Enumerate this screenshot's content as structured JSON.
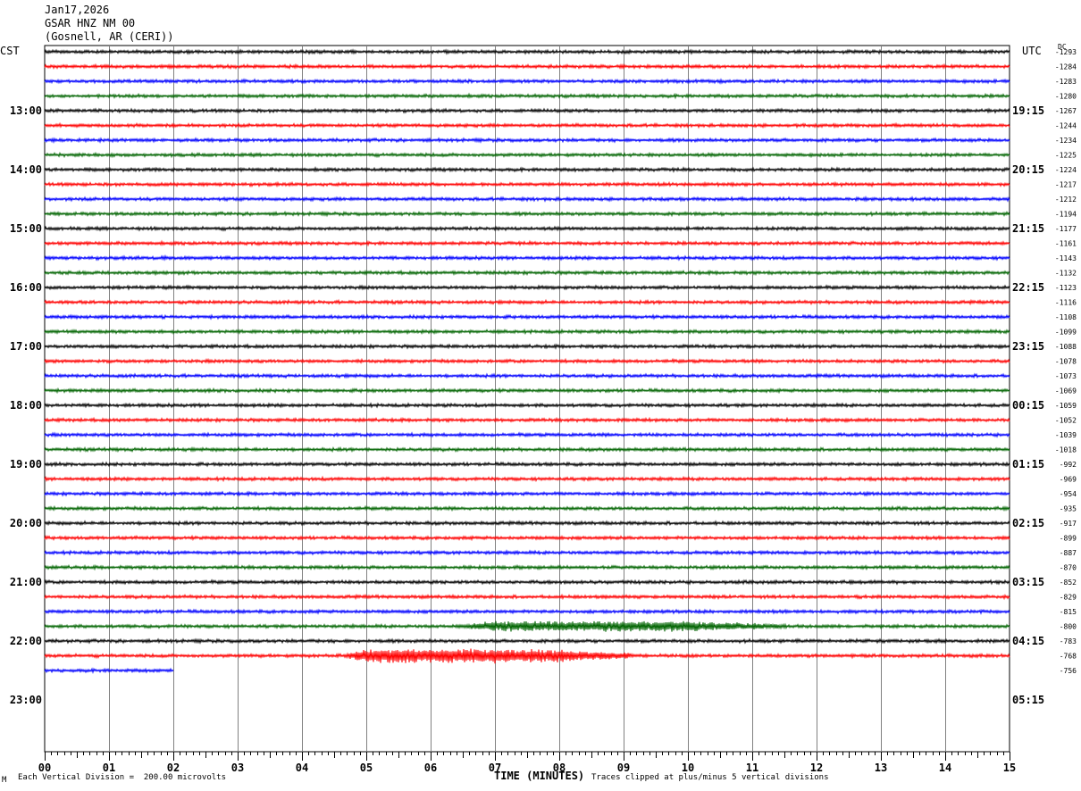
{
  "header": {
    "date": "Jan17,2026",
    "station": "GSAR HNZ NM 00",
    "location": "(Gosnell, AR (CERI))"
  },
  "axes": {
    "left_label": "CST",
    "right_label": "UTC",
    "right_col_label": "DC"
  },
  "footer": {
    "scale_note": "Each Vertical Division =  200.00 microvolts",
    "xlabel": "TIME (MINUTES)",
    "clip_note": "Traces clipped at plus/minus 5 vertical divisions",
    "corner_mark": "M"
  },
  "colors": {
    "trace_cycle": [
      "#000000",
      "#ff0000",
      "#0000ff",
      "#006400"
    ],
    "grid": "#808080",
    "frame": "#000000"
  },
  "chart_data": {
    "type": "line",
    "title": "GSAR HNZ NM 00",
    "xlabel": "TIME (MINUTES)",
    "xlim": [
      0,
      15
    ],
    "x_ticks": [
      "00",
      "01",
      "02",
      "03",
      "04",
      "05",
      "06",
      "07",
      "08",
      "09",
      "10",
      "11",
      "12",
      "13",
      "14",
      "15"
    ],
    "rows_per_hour": 4,
    "row_duration_minutes": 15,
    "cst_hour_labels": [
      "13:00",
      "14:00",
      "15:00",
      "16:00",
      "17:00",
      "18:00",
      "19:00",
      "20:00",
      "21:00",
      "22:00",
      "23:00"
    ],
    "utc_hour_labels": [
      "19:15",
      "20:15",
      "21:15",
      "22:15",
      "23:15",
      "00:15",
      "01:15",
      "02:15",
      "03:15",
      "04:15",
      "05:15"
    ],
    "dc_offsets": [
      -1293,
      -1284,
      -1283,
      -1280,
      -1267,
      -1244,
      -1234,
      -1225,
      -1224,
      -1217,
      -1212,
      -1194,
      -1177,
      -1161,
      -1143,
      -1132,
      -1123,
      -1116,
      -1108,
      -1099,
      -1088,
      -1078,
      -1073,
      -1069,
      -1059,
      -1052,
      -1039,
      -1018,
      -992,
      -969,
      -954,
      -935,
      -917,
      -899,
      -887,
      -870,
      -852,
      -829,
      -815,
      -800,
      -783,
      -768,
      -756
    ],
    "trace_count": 43,
    "last_trace_end_minute": 2.0,
    "events": [
      {
        "trace_index": 14,
        "start_minute": 1.8,
        "end_minute": 1.9,
        "amplitude_divisions": 0.8
      },
      {
        "trace_index": 39,
        "start_minute": 6.3,
        "end_minute": 11.5,
        "amplitude_divisions": 1.6
      },
      {
        "trace_index": 41,
        "start_minute": 4.5,
        "end_minute": 9.1,
        "amplitude_divisions": 2.2
      }
    ],
    "background_noise_divisions": 0.35
  }
}
